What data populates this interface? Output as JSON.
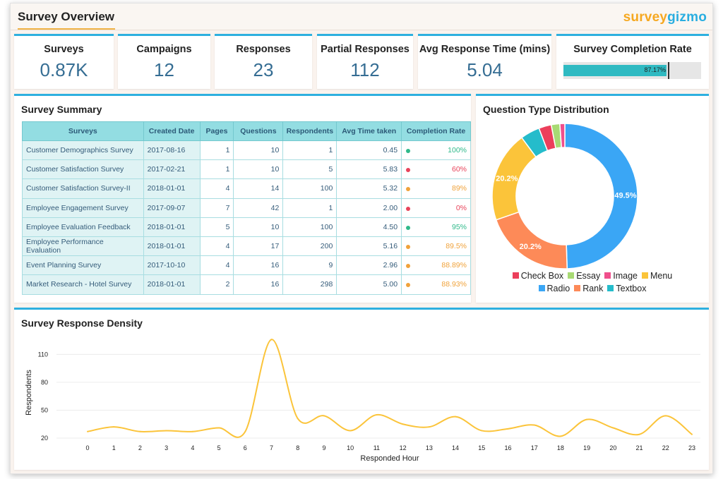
{
  "header": {
    "title": "Survey Overview",
    "logo_part1": "survey",
    "logo_part2": "gizmo"
  },
  "kpis": [
    {
      "label": "Surveys",
      "value": "0.87K"
    },
    {
      "label": "Campaigns",
      "value": "12"
    },
    {
      "label": "Responses",
      "value": "23"
    },
    {
      "label": "Partial Responses",
      "value": "112"
    },
    {
      "label": "Avg Response Time (mins)",
      "value": "5.04"
    }
  ],
  "completion": {
    "label": "Survey Completion Rate",
    "value_text": "87.17%",
    "value": 87.17,
    "target": 88,
    "bar_color": "#2fbac2"
  },
  "summary": {
    "title": "Survey Summary",
    "columns": [
      "Surveys",
      "Created Date",
      "Pages",
      "Questions",
      "Respondents",
      "Avg Time taken",
      "Completion Rate"
    ],
    "rows": [
      [
        "Customer Demographics Survey",
        "2017-08-16",
        "1",
        "10",
        "1",
        "0.45",
        "100%",
        "#2fb98a"
      ],
      [
        "Customer Satisfaction Survey",
        "2017-02-21",
        "1",
        "10",
        "5",
        "5.83",
        "60%",
        "#e8435a"
      ],
      [
        "Customer Satisfaction Survey-II",
        "2018-01-01",
        "4",
        "14",
        "100",
        "5.32",
        "89%",
        "#f0a23a"
      ],
      [
        "Employee Engagement Survey",
        "2017-09-07",
        "7",
        "42",
        "1",
        "2.00",
        "0%",
        "#e8435a"
      ],
      [
        "Employee Evaluation Feedback",
        "2018-01-01",
        "5",
        "10",
        "100",
        "4.50",
        "95%",
        "#2fb98a"
      ],
      [
        "Employee Performance Evaluation",
        "2018-01-01",
        "4",
        "17",
        "200",
        "5.16",
        "89.5%",
        "#f0a23a"
      ],
      [
        "Event Planning Survey",
        "2017-10-10",
        "4",
        "16",
        "9",
        "2.96",
        "88.89%",
        "#f0a23a"
      ],
      [
        "Market Research - Hotel Survey",
        "2018-01-01",
        "2",
        "16",
        "298",
        "5.00",
        "88.93%",
        "#f0a23a"
      ]
    ]
  },
  "distribution": {
    "title": "Question Type Distribution",
    "slices": [
      {
        "name": "Radio",
        "value": 49.5,
        "label": "49.5%",
        "color": "#3aa6f5"
      },
      {
        "name": "Rank",
        "value": 20.2,
        "label": "20.2%",
        "color": "#fd8a58"
      },
      {
        "name": "Menu",
        "value": 20.2,
        "label": "20.2%",
        "color": "#fbc43a"
      },
      {
        "name": "Textbox",
        "value": 4.3,
        "label": "",
        "color": "#25bccb"
      },
      {
        "name": "Check Box",
        "value": 2.8,
        "label": "",
        "color": "#ec3f5b"
      },
      {
        "name": "Essay",
        "value": 1.9,
        "label": "",
        "color": "#a8da74"
      },
      {
        "name": "Image",
        "value": 1.1,
        "label": "",
        "color": "#f04f8c"
      }
    ],
    "legend_row1": [
      {
        "name": "Check Box",
        "color": "#ec3f5b"
      },
      {
        "name": "Essay",
        "color": "#a8da74"
      },
      {
        "name": "Image",
        "color": "#f04f8c"
      },
      {
        "name": "Menu",
        "color": "#fbc43a"
      }
    ],
    "legend_row2": [
      {
        "name": "Radio",
        "color": "#3aa6f5"
      },
      {
        "name": "Rank",
        "color": "#fd8a58"
      },
      {
        "name": "Textbox",
        "color": "#25bccb"
      }
    ]
  },
  "density": {
    "title": "Survey Response Density",
    "ylabel": "Respondents",
    "xlabel": "Responded Hour",
    "yticks": [
      20,
      50,
      80,
      110
    ],
    "line_color": "#fbc43a"
  },
  "chart_data": {
    "type": "line",
    "title": "Survey Response Density",
    "xlabel": "Responded Hour",
    "ylabel": "Respondents",
    "x": [
      0,
      1,
      2,
      3,
      4,
      5,
      6,
      7,
      8,
      9,
      10,
      11,
      12,
      13,
      14,
      15,
      16,
      17,
      18,
      19,
      20,
      21,
      22,
      23
    ],
    "y": [
      27,
      32,
      27,
      28,
      27,
      31,
      27,
      126,
      41,
      44,
      28,
      45,
      35,
      32,
      43,
      28,
      30,
      34,
      22,
      40,
      31,
      24,
      44,
      24
    ],
    "ylim": [
      20,
      130
    ],
    "grid": true
  }
}
